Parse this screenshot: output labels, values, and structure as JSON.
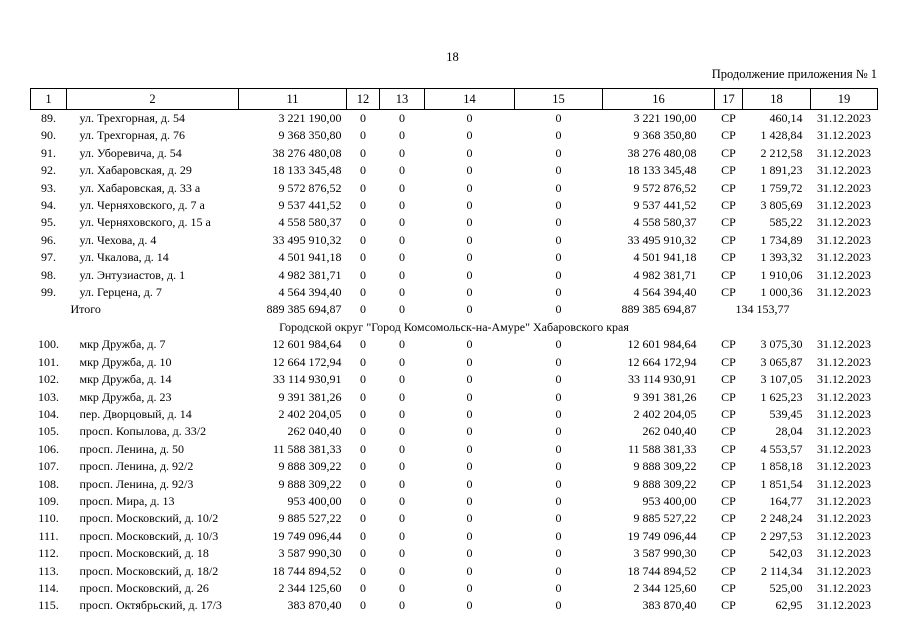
{
  "page": {
    "number": "18",
    "continuation_note": "Продолжение приложения № 1"
  },
  "colors": {
    "background": "#ffffff",
    "text": "#000000",
    "border": "#000000"
  },
  "table": {
    "headers": [
      "1",
      "2",
      "11",
      "12",
      "13",
      "14",
      "15",
      "16",
      "17",
      "18",
      "19"
    ],
    "rows": [
      {
        "type": "data",
        "num": "89.",
        "address": "ул. Трехгорная, д. 54",
        "c11": "3 221 190,00",
        "c12": "0",
        "c13": "0",
        "c14": "0",
        "c15": "0",
        "c16": "3 221 190,00",
        "c17": "СР",
        "c18": "460,14",
        "c19": "31.12.2023"
      },
      {
        "type": "data",
        "num": "90.",
        "address": "ул. Трехгорная, д. 76",
        "c11": "9 368 350,80",
        "c12": "0",
        "c13": "0",
        "c14": "0",
        "c15": "0",
        "c16": "9 368 350,80",
        "c17": "СР",
        "c18": "1 428,84",
        "c19": "31.12.2023"
      },
      {
        "type": "data",
        "num": "91.",
        "address": "ул. Уборевича, д. 54",
        "c11": "38 276 480,08",
        "c12": "0",
        "c13": "0",
        "c14": "0",
        "c15": "0",
        "c16": "38 276 480,08",
        "c17": "СР",
        "c18": "2 212,58",
        "c19": "31.12.2023"
      },
      {
        "type": "data",
        "num": "92.",
        "address": "ул. Хабаровская, д. 29",
        "c11": "18 133 345,48",
        "c12": "0",
        "c13": "0",
        "c14": "0",
        "c15": "0",
        "c16": "18 133 345,48",
        "c17": "СР",
        "c18": "1 891,23",
        "c19": "31.12.2023"
      },
      {
        "type": "data",
        "num": "93.",
        "address": "ул. Хабаровская, д. 33 а",
        "c11": "9 572 876,52",
        "c12": "0",
        "c13": "0",
        "c14": "0",
        "c15": "0",
        "c16": "9 572 876,52",
        "c17": "СР",
        "c18": "1 759,72",
        "c19": "31.12.2023"
      },
      {
        "type": "data",
        "num": "94.",
        "address": "ул. Черняховского, д. 7 а",
        "c11": "9 537 441,52",
        "c12": "0",
        "c13": "0",
        "c14": "0",
        "c15": "0",
        "c16": "9 537 441,52",
        "c17": "СР",
        "c18": "3 805,69",
        "c19": "31.12.2023"
      },
      {
        "type": "data",
        "num": "95.",
        "address": "ул. Черняховского, д. 15 а",
        "c11": "4 558 580,37",
        "c12": "0",
        "c13": "0",
        "c14": "0",
        "c15": "0",
        "c16": "4 558 580,37",
        "c17": "СР",
        "c18": "585,22",
        "c19": "31.12.2023"
      },
      {
        "type": "data",
        "num": "96.",
        "address": "ул. Чехова, д. 4",
        "c11": "33 495 910,32",
        "c12": "0",
        "c13": "0",
        "c14": "0",
        "c15": "0",
        "c16": "33 495 910,32",
        "c17": "СР",
        "c18": "1 734,89",
        "c19": "31.12.2023"
      },
      {
        "type": "data",
        "num": "97.",
        "address": "ул. Чкалова, д. 14",
        "c11": "4 501 941,18",
        "c12": "0",
        "c13": "0",
        "c14": "0",
        "c15": "0",
        "c16": "4 501 941,18",
        "c17": "СР",
        "c18": "1 393,32",
        "c19": "31.12.2023"
      },
      {
        "type": "data",
        "num": "98.",
        "address": "ул. Энтузиастов, д. 1",
        "c11": "4 982 381,71",
        "c12": "0",
        "c13": "0",
        "c14": "0",
        "c15": "0",
        "c16": "4 982 381,71",
        "c17": "СР",
        "c18": "1 910,06",
        "c19": "31.12.2023"
      },
      {
        "type": "data",
        "num": "99.",
        "address": "ул. Герцена, д. 7",
        "c11": "4 564 394,40",
        "c12": "0",
        "c13": "0",
        "c14": "0",
        "c15": "0",
        "c16": "4 564 394,40",
        "c17": "СР",
        "c18": "1 000,36",
        "c19": "31.12.2023"
      },
      {
        "type": "total",
        "label": "Итого",
        "c11": "889 385 694,87",
        "c12": "0",
        "c13": "0",
        "c14": "0",
        "c15": "0",
        "c16": "889 385 694,87",
        "c18": "134 153,77"
      },
      {
        "type": "section",
        "label": "Городской округ \"Город Комсомольск-на-Амуре\" Хабаровского края"
      },
      {
        "type": "data",
        "num": "100.",
        "address": "мкр Дружба, д. 7",
        "c11": "12 601 984,64",
        "c12": "0",
        "c13": "0",
        "c14": "0",
        "c15": "0",
        "c16": "12 601 984,64",
        "c17": "СР",
        "c18": "3 075,30",
        "c19": "31.12.2023"
      },
      {
        "type": "data",
        "num": "101.",
        "address": "мкр Дружба, д. 10",
        "c11": "12 664 172,94",
        "c12": "0",
        "c13": "0",
        "c14": "0",
        "c15": "0",
        "c16": "12 664 172,94",
        "c17": "СР",
        "c18": "3 065,87",
        "c19": "31.12.2023"
      },
      {
        "type": "data",
        "num": "102.",
        "address": "мкр Дружба, д. 14",
        "c11": "33 114 930,91",
        "c12": "0",
        "c13": "0",
        "c14": "0",
        "c15": "0",
        "c16": "33 114 930,91",
        "c17": "СР",
        "c18": "3 107,05",
        "c19": "31.12.2023"
      },
      {
        "type": "data",
        "num": "103.",
        "address": "мкр Дружба, д. 23",
        "c11": "9 391 381,26",
        "c12": "0",
        "c13": "0",
        "c14": "0",
        "c15": "0",
        "c16": "9 391 381,26",
        "c17": "СР",
        "c18": "1 625,23",
        "c19": "31.12.2023"
      },
      {
        "type": "data",
        "num": "104.",
        "address": "пер. Дворцовый, д. 14",
        "c11": "2 402 204,05",
        "c12": "0",
        "c13": "0",
        "c14": "0",
        "c15": "0",
        "c16": "2 402 204,05",
        "c17": "СР",
        "c18": "539,45",
        "c19": "31.12.2023"
      },
      {
        "type": "data",
        "num": "105.",
        "address": "просп. Копылова, д. 33/2",
        "c11": "262 040,40",
        "c12": "0",
        "c13": "0",
        "c14": "0",
        "c15": "0",
        "c16": "262 040,40",
        "c17": "СР",
        "c18": "28,04",
        "c19": "31.12.2023"
      },
      {
        "type": "data",
        "num": "106.",
        "address": "просп. Ленина, д. 50",
        "c11": "11 588 381,33",
        "c12": "0",
        "c13": "0",
        "c14": "0",
        "c15": "0",
        "c16": "11 588 381,33",
        "c17": "СР",
        "c18": "4 553,57",
        "c19": "31.12.2023"
      },
      {
        "type": "data",
        "num": "107.",
        "address": "просп. Ленина, д. 92/2",
        "c11": "9 888 309,22",
        "c12": "0",
        "c13": "0",
        "c14": "0",
        "c15": "0",
        "c16": "9 888 309,22",
        "c17": "СР",
        "c18": "1 858,18",
        "c19": "31.12.2023"
      },
      {
        "type": "data",
        "num": "108.",
        "address": "просп. Ленина, д. 92/3",
        "c11": "9 888 309,22",
        "c12": "0",
        "c13": "0",
        "c14": "0",
        "c15": "0",
        "c16": "9 888 309,22",
        "c17": "СР",
        "c18": "1 851,54",
        "c19": "31.12.2023"
      },
      {
        "type": "data",
        "num": "109.",
        "address": "просп. Мира, д. 13",
        "c11": "953 400,00",
        "c12": "0",
        "c13": "0",
        "c14": "0",
        "c15": "0",
        "c16": "953 400,00",
        "c17": "СР",
        "c18": "164,77",
        "c19": "31.12.2023"
      },
      {
        "type": "data",
        "num": "110.",
        "address": "просп. Московский, д. 10/2",
        "c11": "9 885 527,22",
        "c12": "0",
        "c13": "0",
        "c14": "0",
        "c15": "0",
        "c16": "9 885 527,22",
        "c17": "СР",
        "c18": "2 248,24",
        "c19": "31.12.2023"
      },
      {
        "type": "data",
        "num": "111.",
        "address": "просп. Московский, д. 10/3",
        "c11": "19 749 096,44",
        "c12": "0",
        "c13": "0",
        "c14": "0",
        "c15": "0",
        "c16": "19 749 096,44",
        "c17": "СР",
        "c18": "2 297,53",
        "c19": "31.12.2023"
      },
      {
        "type": "data",
        "num": "112.",
        "address": "просп. Московский, д. 18",
        "c11": "3 587 990,30",
        "c12": "0",
        "c13": "0",
        "c14": "0",
        "c15": "0",
        "c16": "3 587 990,30",
        "c17": "СР",
        "c18": "542,03",
        "c19": "31.12.2023"
      },
      {
        "type": "data",
        "num": "113.",
        "address": "просп. Московский, д. 18/2",
        "c11": "18 744 894,52",
        "c12": "0",
        "c13": "0",
        "c14": "0",
        "c15": "0",
        "c16": "18 744 894,52",
        "c17": "СР",
        "c18": "2 114,34",
        "c19": "31.12.2023"
      },
      {
        "type": "data",
        "num": "114.",
        "address": "просп. Московский, д. 26",
        "c11": "2 344 125,60",
        "c12": "0",
        "c13": "0",
        "c14": "0",
        "c15": "0",
        "c16": "2 344 125,60",
        "c17": "СР",
        "c18": "525,00",
        "c19": "31.12.2023"
      },
      {
        "type": "data",
        "num": "115.",
        "address": "просп. Октябрьский, д. 17/3",
        "c11": "383 870,40",
        "c12": "0",
        "c13": "0",
        "c14": "0",
        "c15": "0",
        "c16": "383 870,40",
        "c17": "СР",
        "c18": "62,95",
        "c19": "31.12.2023"
      }
    ]
  }
}
